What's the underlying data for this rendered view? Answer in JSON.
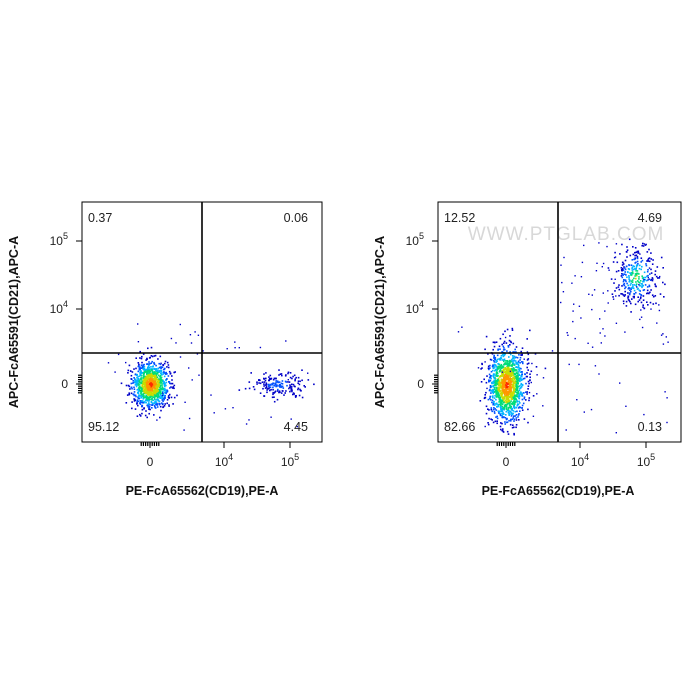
{
  "chart_data": [
    {
      "type": "scatter",
      "subtype": "flow-cytometry-density-dot-plot",
      "xlabel": "PE-FcA65562(CD19),PE-A",
      "ylabel": "APC-FcA65591(CD21),APC-A",
      "x_scale": "biexponential",
      "y_scale": "biexponential",
      "x_ticks": [
        "0",
        "10^4",
        "10^5"
      ],
      "y_ticks": [
        "0",
        "10^4",
        "10^5"
      ],
      "quadrant_gate": {
        "x": 6000,
        "y": 2500
      },
      "quadrants": [
        {
          "name": "upper-left",
          "label": "0.37"
        },
        {
          "name": "upper-right",
          "label": "0.06"
        },
        {
          "name": "lower-left",
          "label": "95.12"
        },
        {
          "name": "lower-right",
          "label": "4.45"
        }
      ],
      "populations": [
        {
          "x_center": 0,
          "y_center": 0,
          "events": 1100,
          "density": "high"
        },
        {
          "x_center": 65000,
          "y_center": 0,
          "events": 180,
          "density": "low"
        }
      ]
    },
    {
      "type": "scatter",
      "subtype": "flow-cytometry-density-dot-plot",
      "xlabel": "PE-FcA65562(CD19),PE-A",
      "ylabel": "APC-FcA65591(CD21),APC-A",
      "x_scale": "biexponential",
      "y_scale": "biexponential",
      "x_ticks": [
        "0",
        "10^4",
        "10^5"
      ],
      "y_ticks": [
        "0",
        "10^4",
        "10^5"
      ],
      "quadrant_gate": {
        "x": 6000,
        "y": 2500
      },
      "quadrants": [
        {
          "name": "upper-left",
          "label": "12.52"
        },
        {
          "name": "upper-right",
          "label": "4.69"
        },
        {
          "name": "lower-left",
          "label": "82.66"
        },
        {
          "name": "lower-right",
          "label": "0.13"
        }
      ],
      "populations": [
        {
          "x_center": 0,
          "y_center": 0,
          "events": 1300,
          "density": "high"
        },
        {
          "x_center": 70000,
          "y_center": 30000,
          "events": 300,
          "density": "medium"
        }
      ]
    }
  ],
  "watermark": "WWW.PTGLAB.COM",
  "colors": {
    "density_scale": [
      "#0000c8",
      "#0050ff",
      "#00b4ff",
      "#00dc78",
      "#c8dc00",
      "#ff9600",
      "#ff2800"
    ],
    "axis": "#000000",
    "gate": "#000000"
  }
}
